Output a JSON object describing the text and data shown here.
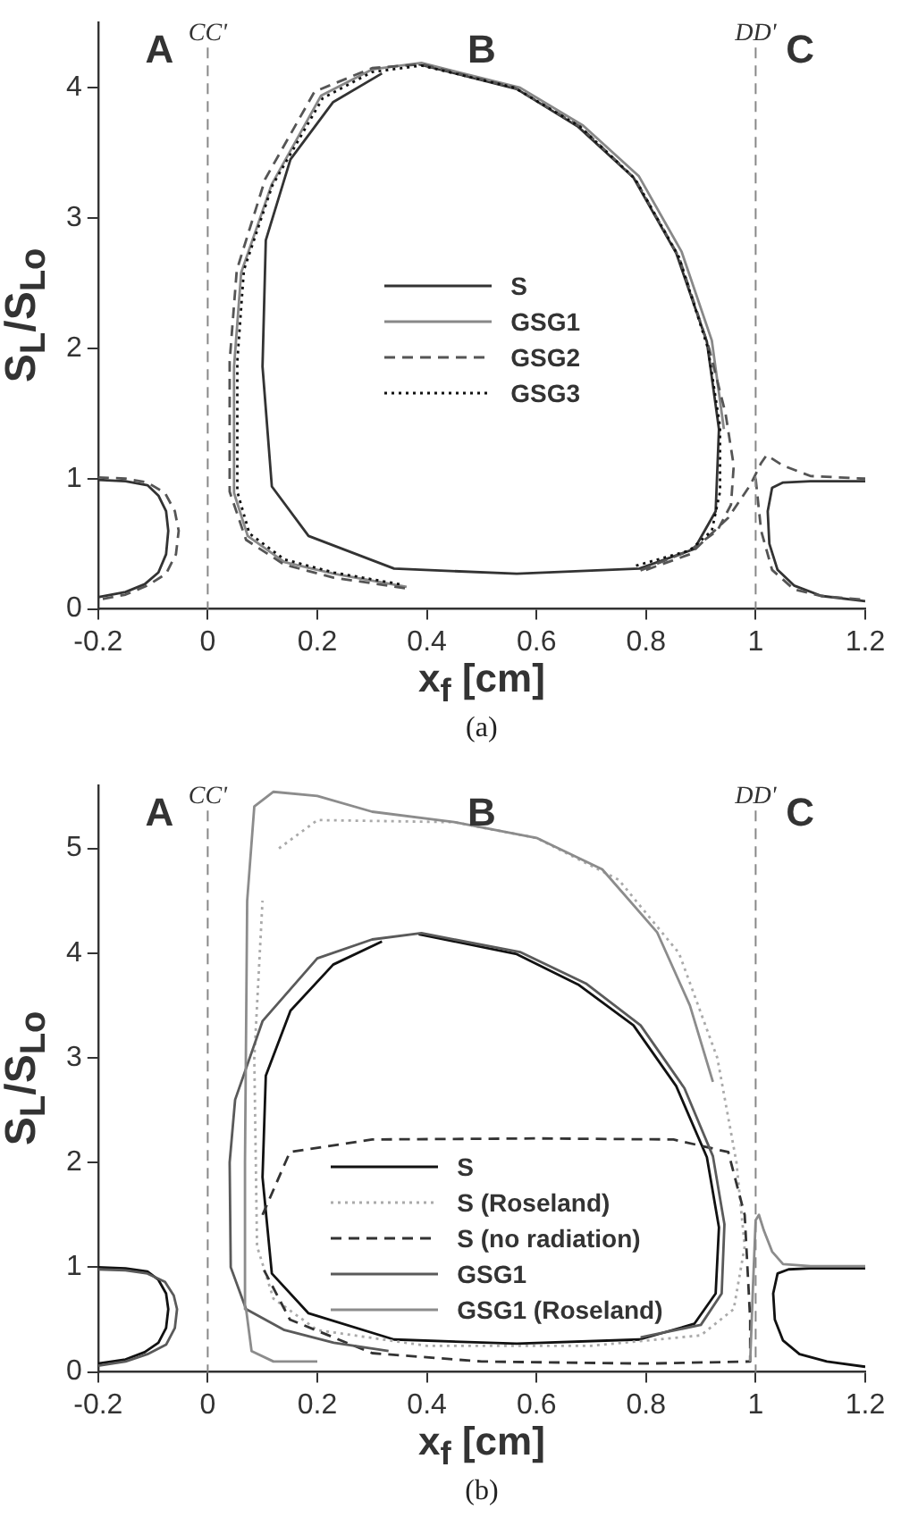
{
  "chart_data": [
    {
      "type": "line",
      "xlabel": "x$_{f}$ [cm]",
      "ylabel": "S$_{L}$/S$_{Lo}$",
      "xlim": [
        -0.2,
        1.2
      ],
      "ylim": [
        0,
        4.5
      ],
      "xticks": [
        -0.2,
        0,
        0.2,
        0.4,
        0.6,
        0.8,
        1,
        1.2
      ],
      "yticks": [
        0,
        1,
        2,
        3,
        4
      ],
      "grid": false,
      "legend": "center",
      "marker": "none",
      "series": [
        {
          "name": "S",
          "color": "#333333",
          "line_style": "solid",
          "x": [
            0.385,
            0.564,
            0.676,
            0.777,
            0.855,
            0.911,
            0.933,
            0.927,
            0.888,
            0.788,
            0.564,
            0.34,
            0.184,
            0.117,
            0.1,
            0.106,
            0.151,
            0.229,
            0.318
          ],
          "values": [
            4.18,
            3.99,
            3.7,
            3.31,
            2.73,
            2.05,
            1.38,
            0.75,
            0.46,
            0.31,
            0.27,
            0.31,
            0.56,
            0.94,
            1.86,
            2.83,
            3.45,
            3.89,
            4.11
          ]
        },
        {
          "color": "#333333",
          "line_style": "solid",
          "x": [
            -0.2,
            -0.15,
            -0.11,
            -0.09,
            -0.076,
            -0.072,
            -0.076,
            -0.09,
            -0.115,
            -0.15,
            -0.2
          ],
          "values": [
            0.99,
            0.98,
            0.95,
            0.87,
            0.75,
            0.6,
            0.42,
            0.28,
            0.19,
            0.13,
            0.09
          ]
        },
        {
          "color": "#333333",
          "line_style": "solid",
          "x": [
            1.2,
            1.1,
            1.05,
            1.03,
            1.022,
            1.025,
            1.04,
            1.07,
            1.12,
            1.2
          ],
          "values": [
            0.98,
            0.98,
            0.97,
            0.93,
            0.75,
            0.5,
            0.3,
            0.18,
            0.1,
            0.06
          ]
        },
        {
          "name": "GSG1",
          "color": "#888888",
          "line_style": "solid",
          "x": [
            0.363,
            0.23,
            0.14,
            0.073,
            0.048,
            0.048,
            0.061,
            0.117,
            0.207,
            0.3,
            0.39,
            0.57,
            0.685,
            0.787,
            0.865,
            0.92,
            0.942
          ],
          "values": [
            0.17,
            0.27,
            0.36,
            0.56,
            0.89,
            1.86,
            2.58,
            3.26,
            3.94,
            4.14,
            4.19,
            4.0,
            3.71,
            3.32,
            2.74,
            2.06,
            1.38
          ]
        },
        {
          "name": "GSG2",
          "color": "#555555",
          "line_style": "dashed",
          "x": [
            0.36,
            0.23,
            0.14,
            0.07,
            0.04,
            0.04,
            0.053,
            0.105,
            0.195,
            0.3,
            0.39,
            0.56,
            0.68,
            0.78,
            0.86,
            0.915,
            0.945,
            0.96,
            0.955,
            0.93,
            0.88,
            0.78
          ],
          "values": [
            0.16,
            0.24,
            0.34,
            0.53,
            0.9,
            1.9,
            2.6,
            3.3,
            3.97,
            4.15,
            4.18,
            4.0,
            3.7,
            3.3,
            2.7,
            2.0,
            1.5,
            1.1,
            0.8,
            0.6,
            0.45,
            0.28
          ]
        },
        {
          "color": "#555555",
          "line_style": "dashed",
          "x": [
            -0.2,
            -0.15,
            -0.11,
            -0.078,
            -0.06,
            -0.053,
            -0.058,
            -0.076,
            -0.11,
            -0.15,
            -0.2
          ],
          "values": [
            1.01,
            1.0,
            0.97,
            0.89,
            0.75,
            0.6,
            0.42,
            0.27,
            0.18,
            0.11,
            0.07
          ]
        },
        {
          "color": "#555555",
          "line_style": "dashed",
          "x": [
            0.8,
            0.88,
            0.95,
            0.99,
            1.01,
            1.02,
            1.05,
            1.1,
            1.2
          ],
          "values": [
            0.3,
            0.42,
            0.7,
            0.95,
            1.12,
            1.18,
            1.1,
            1.02,
            1.0
          ]
        },
        {
          "color": "#555555",
          "line_style": "dashed",
          "x": [
            1.0,
            1.01,
            1.03,
            1.07,
            1.12,
            1.2
          ],
          "values": [
            1.0,
            0.6,
            0.3,
            0.15,
            0.1,
            0.07
          ]
        },
        {
          "name": "GSG3",
          "color": "#111111",
          "line_style": "dotted",
          "x": [
            0.35,
            0.23,
            0.14,
            0.076,
            0.054,
            0.054,
            0.066,
            0.118,
            0.21,
            0.3,
            0.39,
            0.56,
            0.68,
            0.78,
            0.86,
            0.913,
            0.935,
            0.935,
            0.92,
            0.88,
            0.78
          ],
          "values": [
            0.19,
            0.28,
            0.38,
            0.58,
            0.9,
            1.9,
            2.6,
            3.25,
            3.92,
            4.12,
            4.17,
            4.0,
            3.7,
            3.3,
            2.7,
            2.0,
            1.4,
            0.9,
            0.6,
            0.45,
            0.33
          ]
        }
      ],
      "ref_lines": [
        {
          "axis": "x",
          "value": 0,
          "label": "CC'",
          "color": "#888888",
          "line_style": "dashed"
        },
        {
          "axis": "x",
          "value": 1,
          "label": "DD'",
          "color": "#888888",
          "line_style": "dashed"
        }
      ],
      "annotations": [
        "A",
        "B",
        "C",
        "(a)"
      ]
    },
    {
      "type": "line",
      "xlabel": "x$_{f}$ [cm]",
      "ylabel": "S$_{L}$/S$_{Lo}$",
      "xlim": [
        -0.2,
        1.2
      ],
      "ylim": [
        0,
        5.6
      ],
      "xticks": [
        -0.2,
        0,
        0.2,
        0.4,
        0.6,
        0.8,
        1,
        1.2
      ],
      "yticks": [
        0,
        1,
        2,
        3,
        4,
        5
      ],
      "grid": false,
      "legend": "bottom",
      "marker": "none",
      "series": [
        {
          "name": "S",
          "color": "#111111",
          "line_style": "solid",
          "x": [
            0.385,
            0.564,
            0.676,
            0.777,
            0.855,
            0.911,
            0.933,
            0.927,
            0.888,
            0.788,
            0.564,
            0.34,
            0.184,
            0.117,
            0.1,
            0.106,
            0.151,
            0.229,
            0.318
          ],
          "values": [
            4.18,
            3.99,
            3.7,
            3.31,
            2.73,
            2.05,
            1.38,
            0.75,
            0.46,
            0.31,
            0.27,
            0.31,
            0.56,
            0.94,
            1.86,
            2.83,
            3.45,
            3.89,
            4.11
          ]
        },
        {
          "color": "#111111",
          "line_style": "solid",
          "x": [
            -0.2,
            -0.15,
            -0.11,
            -0.09,
            -0.076,
            -0.072,
            -0.076,
            -0.09,
            -0.115,
            -0.15,
            -0.2
          ],
          "values": [
            1.0,
            0.99,
            0.96,
            0.88,
            0.75,
            0.6,
            0.42,
            0.28,
            0.19,
            0.12,
            0.08
          ]
        },
        {
          "color": "#111111",
          "line_style": "solid",
          "x": [
            1.2,
            1.1,
            1.06,
            1.04,
            1.032,
            1.035,
            1.05,
            1.08,
            1.13,
            1.2
          ],
          "values": [
            0.99,
            0.99,
            0.98,
            0.94,
            0.75,
            0.5,
            0.3,
            0.17,
            0.1,
            0.05
          ]
        },
        {
          "name": "S (Roseland)",
          "color": "#aaaaaa",
          "line_style": "dotted",
          "x": [
            0.13,
            0.2,
            0.45,
            0.6,
            0.75,
            0.86,
            0.93,
            0.965,
            0.98,
            0.96,
            0.9,
            0.7,
            0.4,
            0.2,
            0.12,
            0.09,
            0.085,
            0.1
          ],
          "values": [
            5.0,
            5.27,
            5.25,
            5.1,
            4.7,
            4.0,
            3.0,
            2.0,
            1.2,
            0.6,
            0.35,
            0.25,
            0.25,
            0.4,
            0.7,
            1.2,
            3.0,
            4.5
          ]
        },
        {
          "name": "S (no radiation)",
          "color": "#333333",
          "line_style": "dashed",
          "x": [
            0.1,
            0.15,
            0.3,
            0.6,
            0.85,
            0.95,
            0.98,
            0.99,
            0.99,
            0.8,
            0.5,
            0.3,
            0.15,
            0.1
          ],
          "values": [
            1.5,
            2.1,
            2.22,
            2.23,
            2.22,
            2.1,
            1.5,
            0.5,
            0.1,
            0.08,
            0.1,
            0.18,
            0.5,
            1.0
          ]
        },
        {
          "name": "GSG1",
          "color": "#5a5a5a",
          "line_style": "solid",
          "x": [
            0.33,
            0.23,
            0.14,
            0.07,
            0.042,
            0.04,
            0.05,
            0.1,
            0.2,
            0.3,
            0.39,
            0.57,
            0.69,
            0.79,
            0.87,
            0.922,
            0.943,
            0.938,
            0.9,
            0.79
          ],
          "values": [
            0.2,
            0.28,
            0.4,
            0.6,
            1.0,
            2.0,
            2.6,
            3.35,
            3.95,
            4.13,
            4.19,
            4.01,
            3.71,
            3.31,
            2.71,
            2.06,
            1.41,
            0.75,
            0.45,
            0.33
          ]
        },
        {
          "color": "#5a5a5a",
          "line_style": "solid",
          "x": [
            -0.2,
            -0.15,
            -0.11,
            -0.078,
            -0.062,
            -0.056,
            -0.06,
            -0.076,
            -0.11,
            -0.15,
            -0.2
          ],
          "values": [
            0.98,
            0.97,
            0.94,
            0.86,
            0.73,
            0.6,
            0.42,
            0.26,
            0.17,
            0.1,
            0.06
          ]
        },
        {
          "name": "GSG1 (Roseland)",
          "color": "#8c8c8c",
          "line_style": "solid",
          "x": [
            0.2,
            0.12,
            0.08,
            0.07,
            0.068,
            0.072,
            0.085,
            0.12,
            0.2,
            0.3,
            0.45,
            0.6,
            0.72,
            0.82,
            0.88,
            0.922
          ],
          "values": [
            0.1,
            0.1,
            0.2,
            0.6,
            2.0,
            4.5,
            5.4,
            5.54,
            5.5,
            5.35,
            5.25,
            5.1,
            4.8,
            4.2,
            3.5,
            2.77
          ]
        },
        {
          "color": "#8c8c8c",
          "line_style": "solid",
          "x": [
            0.99,
            0.995,
            1.0,
            1.006,
            1.015,
            1.03,
            1.05,
            1.1,
            1.2
          ],
          "values": [
            0.1,
            0.8,
            1.45,
            1.5,
            1.35,
            1.15,
            1.03,
            1.01,
            1.01
          ]
        }
      ],
      "ref_lines": [
        {
          "axis": "x",
          "value": 0,
          "label": "CC'",
          "color": "#888888",
          "line_style": "dashed"
        },
        {
          "axis": "x",
          "value": 1,
          "label": "DD'",
          "color": "#888888",
          "line_style": "dashed"
        }
      ],
      "annotations": [
        "A",
        "B",
        "C",
        "(b)"
      ]
    }
  ]
}
